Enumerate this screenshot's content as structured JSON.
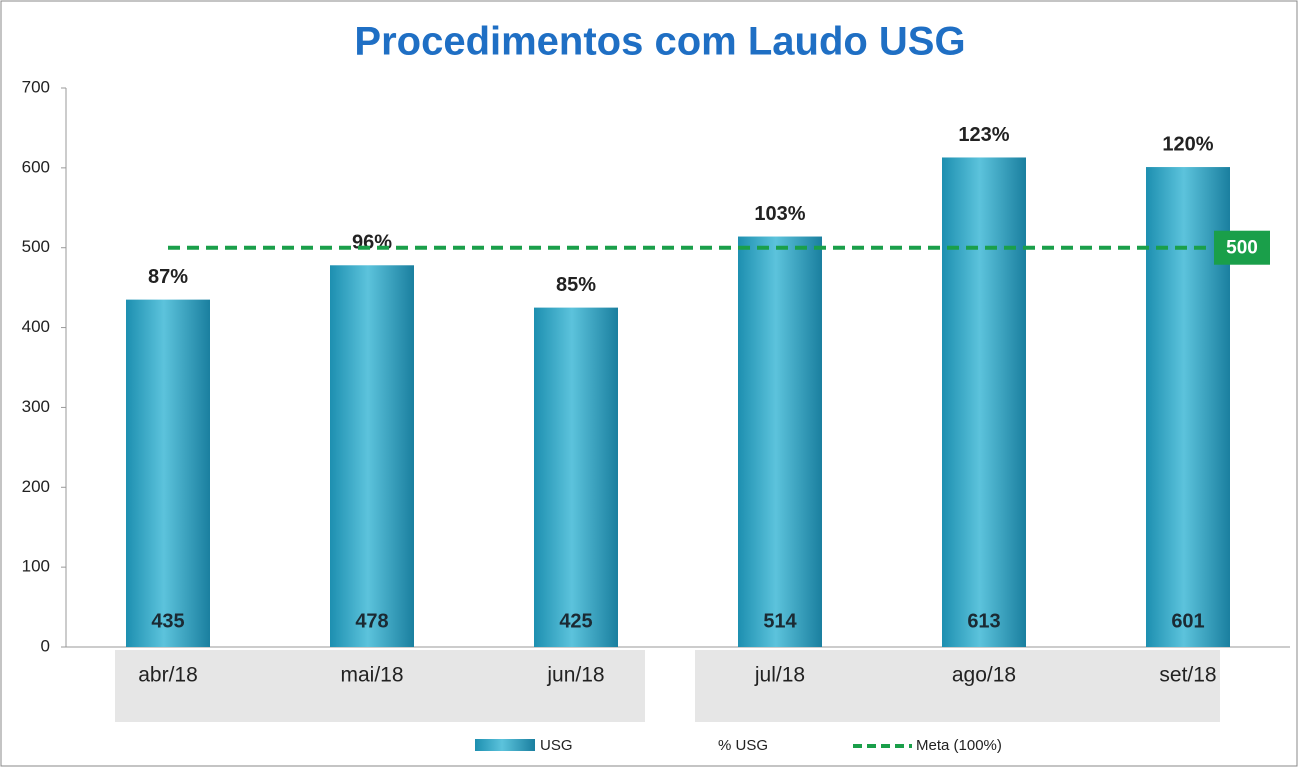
{
  "chart_data": {
    "type": "bar",
    "title": "Procedimentos  com Laudo  USG",
    "categories": [
      "abr/18",
      "mai/18",
      "jun/18",
      "jul/18",
      "ago/18",
      "set/18"
    ],
    "series": [
      {
        "name": "USG",
        "color": "#2a9fbf",
        "values": [
          435,
          478,
          425,
          514,
          613,
          601
        ]
      },
      {
        "name": "% USG",
        "values": [
          87,
          96,
          85,
          103,
          123,
          120
        ],
        "value_labels": [
          "87%",
          "96%",
          "85%",
          "103%",
          "123%",
          "120%"
        ]
      }
    ],
    "reference_line": {
      "name": "Meta (100%)",
      "value": 500,
      "color": "#1a9f4a"
    },
    "ylim": [
      0,
      700
    ],
    "yticks": [
      0,
      100,
      200,
      300,
      400,
      500,
      600,
      700
    ]
  }
}
